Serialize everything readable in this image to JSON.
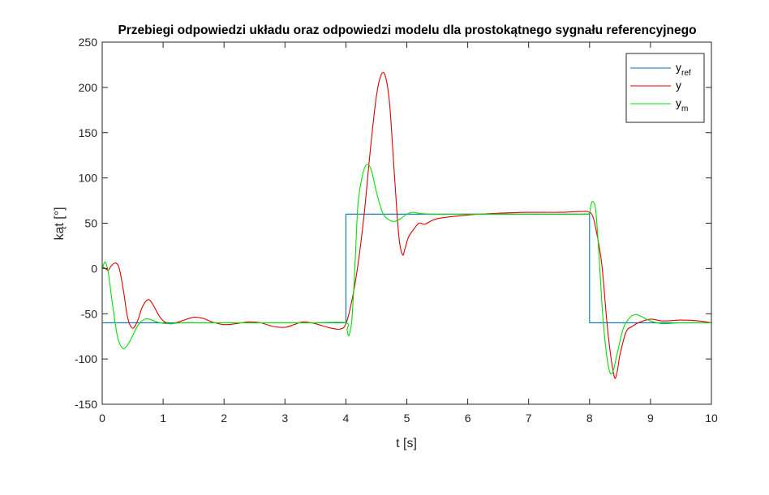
{
  "chart_data": {
    "type": "line",
    "title": "Przebiegi odpowiedzi układu oraz odpowiedzi modelu dla prostokątnego sygnału referencyjnego",
    "xlabel": "t [s]",
    "ylabel": "kąt [°]",
    "xlim": [
      0,
      10
    ],
    "ylim": [
      -150,
      250
    ],
    "xticks": [
      0,
      1,
      2,
      3,
      4,
      5,
      6,
      7,
      8,
      9,
      10
    ],
    "yticks": [
      -150,
      -100,
      -50,
      0,
      50,
      100,
      150,
      200,
      250
    ],
    "grid": false,
    "legend_position": "top-right",
    "series": [
      {
        "name": "y_ref",
        "legend_main": "y",
        "legend_sub": "ref",
        "color": "#0072BD",
        "x": [
          0,
          4,
          4,
          8,
          8,
          10
        ],
        "y": [
          -60,
          -60,
          60,
          60,
          -60,
          -60
        ]
      },
      {
        "name": "y",
        "legend_main": "y",
        "legend_sub": "",
        "color": "#E00000",
        "x": [
          0,
          0.05,
          0.1,
          0.15,
          0.22,
          0.28,
          0.35,
          0.42,
          0.5,
          0.58,
          0.65,
          0.72,
          0.78,
          0.85,
          0.95,
          1.05,
          1.15,
          1.3,
          1.5,
          1.65,
          1.8,
          2.0,
          2.2,
          2.4,
          2.6,
          2.8,
          3.0,
          3.15,
          3.3,
          3.5,
          3.7,
          3.9,
          4.0,
          4.1,
          4.2,
          4.3,
          4.4,
          4.5,
          4.58,
          4.65,
          4.72,
          4.8,
          4.87,
          4.93,
          4.97,
          5.03,
          5.1,
          5.2,
          5.3,
          5.5,
          6.0,
          6.5,
          7.0,
          7.5,
          7.9,
          8.0,
          8.05,
          8.1,
          8.2,
          8.3,
          8.4,
          8.45,
          8.5,
          8.6,
          8.7,
          8.8,
          9.0,
          9.2,
          9.5,
          9.8,
          10.0
        ],
        "y": [
          2,
          0,
          -2,
          3,
          6,
          0,
          -25,
          -55,
          -66,
          -58,
          -44,
          -36,
          -35,
          -42,
          -54,
          -60,
          -61,
          -58,
          -54,
          -55,
          -59,
          -62,
          -61,
          -59,
          -60,
          -64,
          -65,
          -62,
          -59,
          -61,
          -65,
          -67,
          -61,
          -35,
          5,
          60,
          130,
          190,
          214,
          212,
          180,
          100,
          35,
          15,
          22,
          35,
          42,
          50,
          49,
          55,
          59,
          61,
          62,
          62,
          63,
          62,
          58,
          45,
          5,
          -70,
          -118,
          -115,
          -95,
          -70,
          -64,
          -60,
          -56,
          -58,
          -57,
          -58,
          -60
        ],
        "label": "y"
      },
      {
        "name": "y_m",
        "legend_main": "y",
        "legend_sub": "m",
        "color": "#00E000",
        "x": [
          0,
          0.05,
          0.1,
          0.17,
          0.25,
          0.33,
          0.4,
          0.48,
          0.55,
          0.62,
          0.7,
          0.78,
          0.85,
          0.95,
          1.1,
          1.3,
          1.6,
          2.0,
          2.5,
          3.0,
          3.5,
          4.0,
          4.02,
          4.05,
          4.1,
          4.15,
          4.2,
          4.28,
          4.35,
          4.42,
          4.5,
          4.6,
          4.7,
          4.8,
          4.9,
          5.0,
          5.1,
          5.2,
          5.4,
          6.0,
          7.0,
          7.9,
          8.0,
          8.02,
          8.05,
          8.1,
          8.15,
          8.22,
          8.3,
          8.37,
          8.45,
          8.55,
          8.65,
          8.75,
          8.85,
          9.0,
          9.2,
          9.5,
          10.0
        ],
        "y": [
          0,
          7,
          -5,
          -40,
          -75,
          -88,
          -86,
          -77,
          -67,
          -60,
          -56,
          -56,
          -58,
          -60,
          -61,
          -60,
          -60,
          -60,
          -60,
          -60,
          -60,
          -60,
          -68,
          -74,
          -55,
          5,
          72,
          105,
          115,
          108,
          85,
          62,
          54,
          52,
          55,
          60,
          62,
          61,
          60,
          60,
          60,
          60,
          62,
          69,
          74,
          65,
          20,
          -55,
          -105,
          -116,
          -95,
          -67,
          -55,
          -51,
          -53,
          -58,
          -61,
          -60,
          -60
        ],
        "label": "y_m"
      }
    ]
  }
}
